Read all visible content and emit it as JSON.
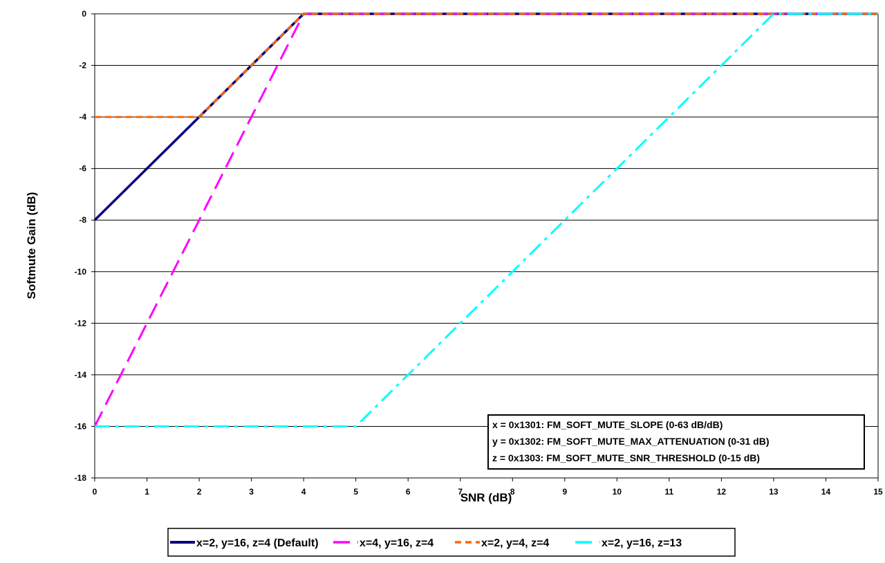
{
  "chart_data": {
    "type": "line",
    "xlabel": "SNR (dB)",
    "ylabel": "Softmute Gain (dB)",
    "xlim": [
      0,
      15
    ],
    "ylim": [
      -18,
      0
    ],
    "xticks": [
      0,
      1,
      2,
      3,
      4,
      5,
      6,
      7,
      8,
      9,
      10,
      11,
      12,
      13,
      14,
      15
    ],
    "yticks": [
      0,
      -2,
      -4,
      -6,
      -8,
      -10,
      -12,
      -14,
      -16,
      -18
    ],
    "grid": "horizontal",
    "legend_placement": "bottom",
    "series": [
      {
        "name": "x=2, y=16, z=4 (Default)",
        "color": "#000080",
        "style": "solid",
        "x": [
          0,
          4,
          15
        ],
        "y": [
          -8,
          0,
          0
        ]
      },
      {
        "name": "x=4, y=16, z=4",
        "color": "#ff00ff",
        "style": "dash",
        "x": [
          0,
          4,
          15
        ],
        "y": [
          -16,
          0,
          0
        ]
      },
      {
        "name": "x=2, y=4, z=4",
        "color": "#ff6600",
        "style": "short-dash",
        "x": [
          0,
          2,
          4,
          15
        ],
        "y": [
          -4,
          -4,
          0,
          0
        ]
      },
      {
        "name": "x=2, y=16, z=13",
        "color": "#00ffff",
        "style": "dash-dot",
        "x": [
          0,
          5,
          13,
          15
        ],
        "y": [
          -16,
          -16,
          0,
          0
        ]
      }
    ],
    "annotations": [
      "x = 0x1301: FM_SOFT_MUTE_SLOPE (0-63 dB/dB)",
      "y = 0x1302: FM_SOFT_MUTE_MAX_ATTENUATION (0-31 dB)",
      "z = 0x1303: FM_SOFT_MUTE_SNR_THRESHOLD (0-15 dB)"
    ]
  }
}
